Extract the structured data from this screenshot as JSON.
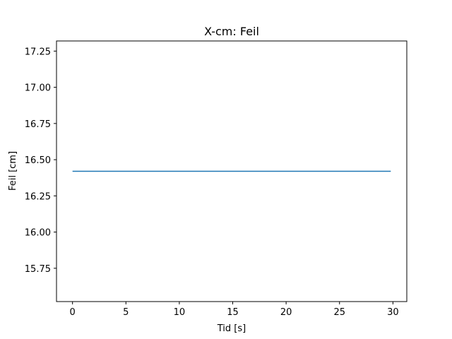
{
  "chart_data": {
    "type": "line",
    "title": "X-cm: Feil",
    "xlabel": "Tid [s]",
    "ylabel": "Feil [cm]",
    "xlim": [
      -1.5,
      31.3
    ],
    "ylim": [
      15.52,
      17.32
    ],
    "xticks": [
      0,
      5,
      10,
      15,
      20,
      25,
      30
    ],
    "xtick_labels": [
      "0",
      "5",
      "10",
      "15",
      "20",
      "25",
      "30"
    ],
    "yticks": [
      15.75,
      16.0,
      16.25,
      16.5,
      16.75,
      17.0,
      17.25
    ],
    "ytick_labels": [
      "15.75",
      "16.00",
      "16.25",
      "16.50",
      "16.75",
      "17.00",
      "17.25"
    ],
    "grid": false,
    "series": [
      {
        "x": [
          0,
          29.8
        ],
        "y": [
          16.42,
          16.42
        ],
        "color": "#1f77b4"
      }
    ]
  }
}
